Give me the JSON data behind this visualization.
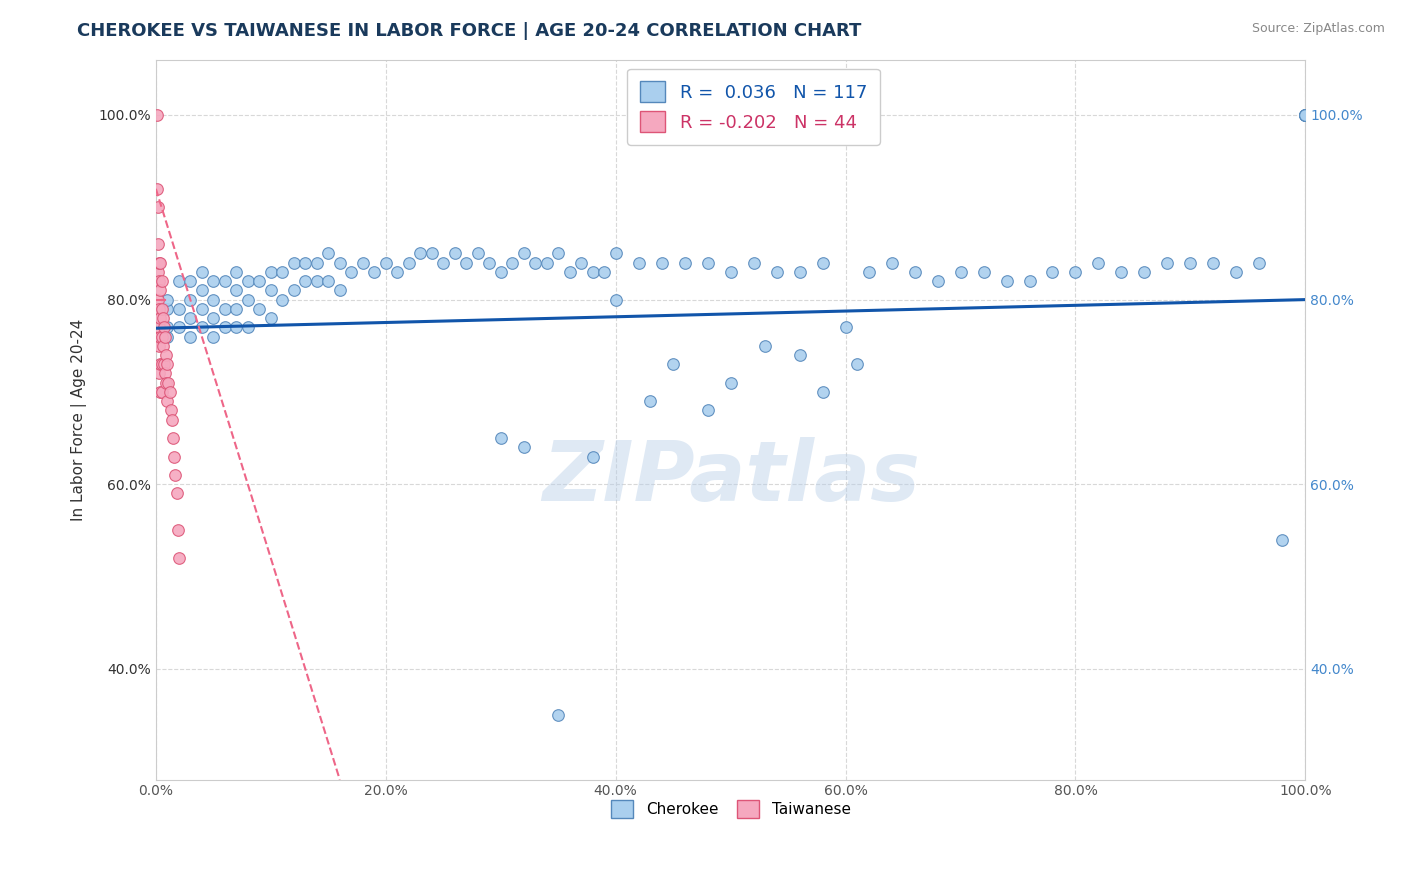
{
  "title": "CHEROKEE VS TAIWANESE IN LABOR FORCE | AGE 20-24 CORRELATION CHART",
  "source_text": "Source: ZipAtlas.com",
  "ylabel": "In Labor Force | Age 20-24",
  "xlim": [
    0.0,
    1.0
  ],
  "ylim": [
    0.28,
    1.06
  ],
  "x_ticks": [
    0.0,
    0.2,
    0.4,
    0.6,
    0.8,
    1.0
  ],
  "y_ticks": [
    0.4,
    0.6,
    0.8,
    1.0
  ],
  "x_tick_labels": [
    "0.0%",
    "20.0%",
    "40.0%",
    "60.0%",
    "80.0%",
    "100.0%"
  ],
  "y_tick_labels": [
    "40.0%",
    "60.0%",
    "80.0%",
    "100.0%"
  ],
  "watermark": "ZIPatlas",
  "background_color": "#ffffff",
  "grid_color": "#d8d8d8",
  "cherokee_color": "#aacfee",
  "taiwanese_color": "#f5a8bf",
  "cherokee_edge_color": "#5588bb",
  "taiwanese_edge_color": "#dd5577",
  "blue_line_color": "#1155aa",
  "pink_line_color": "#ee6688",
  "legend_R_cherokee": "0.036",
  "legend_N_cherokee": "117",
  "legend_R_taiwanese": "-0.202",
  "legend_N_taiwanese": "44",
  "cherokee_color_legend": "#aacfee",
  "cherokee_edge_legend": "#5588bb",
  "taiwanese_color_legend": "#f5a8bf",
  "taiwanese_edge_legend": "#dd5577",
  "title_fontsize": 13,
  "axis_label_fontsize": 11,
  "tick_fontsize": 10,
  "marker_size": 70,
  "cherokee_x": [
    0.01,
    0.01,
    0.01,
    0.01,
    0.02,
    0.02,
    0.02,
    0.03,
    0.03,
    0.03,
    0.03,
    0.04,
    0.04,
    0.04,
    0.04,
    0.05,
    0.05,
    0.05,
    0.05,
    0.06,
    0.06,
    0.06,
    0.07,
    0.07,
    0.07,
    0.07,
    0.08,
    0.08,
    0.08,
    0.09,
    0.09,
    0.1,
    0.1,
    0.1,
    0.11,
    0.11,
    0.12,
    0.12,
    0.13,
    0.13,
    0.14,
    0.14,
    0.15,
    0.15,
    0.16,
    0.16,
    0.17,
    0.18,
    0.19,
    0.2,
    0.21,
    0.22,
    0.23,
    0.24,
    0.25,
    0.26,
    0.27,
    0.28,
    0.29,
    0.3,
    0.31,
    0.32,
    0.33,
    0.34,
    0.35,
    0.36,
    0.37,
    0.38,
    0.39,
    0.4,
    0.42,
    0.44,
    0.46,
    0.48,
    0.5,
    0.52,
    0.54,
    0.56,
    0.58,
    0.6,
    0.62,
    0.64,
    0.66,
    0.68,
    0.7,
    0.72,
    0.74,
    0.76,
    0.78,
    0.8,
    0.82,
    0.84,
    0.86,
    0.88,
    0.9,
    0.92,
    0.94,
    0.96,
    0.98,
    1.0,
    1.0,
    1.0,
    1.0,
    1.0,
    0.3,
    0.32,
    0.35,
    0.38,
    0.4,
    0.43,
    0.45,
    0.48,
    0.5,
    0.53,
    0.56,
    0.58,
    0.61
  ],
  "cherokee_y": [
    0.76,
    0.77,
    0.79,
    0.8,
    0.82,
    0.79,
    0.77,
    0.82,
    0.8,
    0.78,
    0.76,
    0.83,
    0.81,
    0.79,
    0.77,
    0.82,
    0.8,
    0.78,
    0.76,
    0.82,
    0.79,
    0.77,
    0.83,
    0.81,
    0.79,
    0.77,
    0.82,
    0.8,
    0.77,
    0.82,
    0.79,
    0.83,
    0.81,
    0.78,
    0.83,
    0.8,
    0.84,
    0.81,
    0.84,
    0.82,
    0.84,
    0.82,
    0.85,
    0.82,
    0.84,
    0.81,
    0.83,
    0.84,
    0.83,
    0.84,
    0.83,
    0.84,
    0.85,
    0.85,
    0.84,
    0.85,
    0.84,
    0.85,
    0.84,
    0.83,
    0.84,
    0.85,
    0.84,
    0.84,
    0.85,
    0.83,
    0.84,
    0.83,
    0.83,
    0.85,
    0.84,
    0.84,
    0.84,
    0.84,
    0.83,
    0.84,
    0.83,
    0.83,
    0.84,
    0.77,
    0.83,
    0.84,
    0.83,
    0.82,
    0.83,
    0.83,
    0.82,
    0.82,
    0.83,
    0.83,
    0.84,
    0.83,
    0.83,
    0.84,
    0.84,
    0.84,
    0.83,
    0.84,
    0.54,
    1.0,
    1.0,
    1.0,
    1.0,
    1.0,
    0.65,
    0.64,
    0.35,
    0.63,
    0.8,
    0.69,
    0.73,
    0.68,
    0.71,
    0.75,
    0.74,
    0.7,
    0.73
  ],
  "taiwanese_x": [
    0.001,
    0.001,
    0.002,
    0.002,
    0.002,
    0.002,
    0.002,
    0.003,
    0.003,
    0.003,
    0.003,
    0.003,
    0.003,
    0.004,
    0.004,
    0.004,
    0.004,
    0.004,
    0.004,
    0.005,
    0.005,
    0.005,
    0.005,
    0.005,
    0.006,
    0.006,
    0.007,
    0.007,
    0.008,
    0.008,
    0.009,
    0.009,
    0.01,
    0.01,
    0.011,
    0.012,
    0.013,
    0.014,
    0.015,
    0.016,
    0.017,
    0.018,
    0.019,
    0.02
  ],
  "taiwanese_y": [
    1.0,
    0.92,
    0.9,
    0.86,
    0.83,
    0.8,
    0.76,
    0.84,
    0.82,
    0.79,
    0.77,
    0.75,
    0.72,
    0.84,
    0.81,
    0.78,
    0.76,
    0.73,
    0.7,
    0.82,
    0.79,
    0.76,
    0.73,
    0.7,
    0.78,
    0.75,
    0.77,
    0.73,
    0.76,
    0.72,
    0.74,
    0.71,
    0.73,
    0.69,
    0.71,
    0.7,
    0.68,
    0.67,
    0.65,
    0.63,
    0.61,
    0.59,
    0.55,
    0.52
  ],
  "blue_line_x0": 0.0,
  "blue_line_y0": 0.769,
  "blue_line_x1": 1.0,
  "blue_line_y1": 0.8,
  "pink_line_x0": 0.0,
  "pink_line_y0": 0.92,
  "pink_line_x1": 0.16,
  "pink_line_y1": 0.28
}
